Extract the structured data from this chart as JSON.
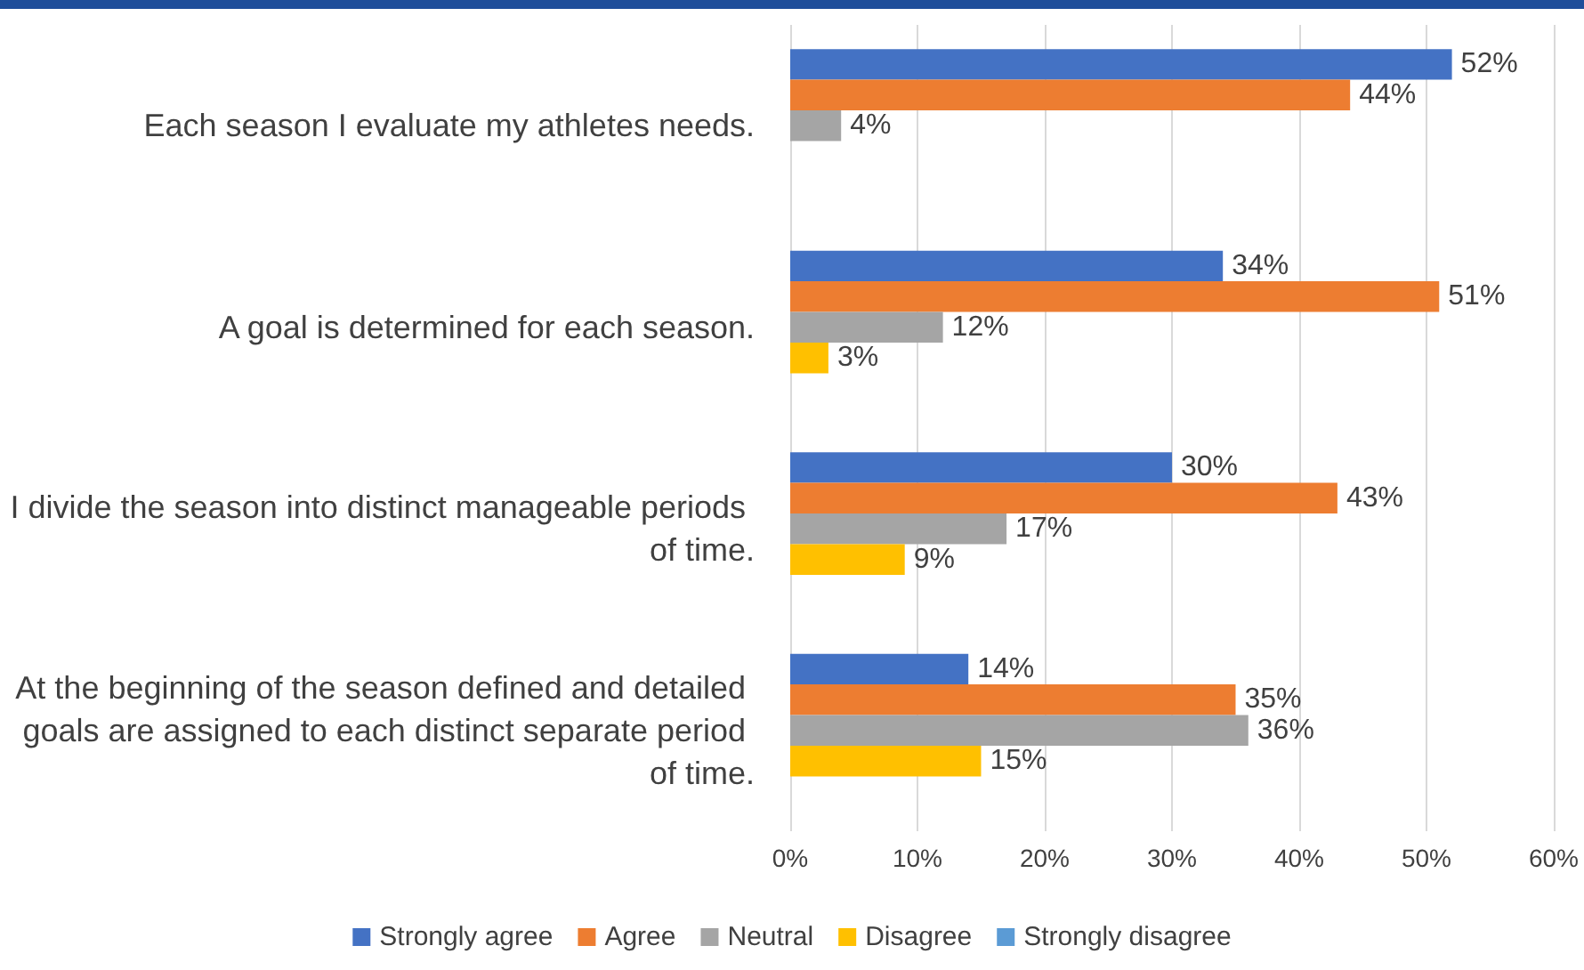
{
  "chart_data": {
    "type": "bar",
    "orientation": "horizontal",
    "categories": [
      "Each season I evaluate my athletes needs.",
      "A goal is determined for each season.",
      "I divide the season into distinct manageable periods of time.",
      "At the beginning of the season defined and detailed goals are assigned to each distinct separate period of time."
    ],
    "series": [
      {
        "name": "Strongly agree",
        "color": "#4472c4",
        "values": [
          52,
          34,
          30,
          14
        ],
        "value_labels": [
          "52%",
          "34%",
          "30%",
          "14%"
        ]
      },
      {
        "name": "Agree",
        "color": "#ed7d31",
        "values": [
          44,
          51,
          43,
          35
        ],
        "value_labels": [
          "44%",
          "51%",
          "43%",
          "35%"
        ]
      },
      {
        "name": "Neutral",
        "color": "#a5a5a5",
        "values": [
          4,
          12,
          17,
          36
        ],
        "value_labels": [
          "4%",
          "12%",
          "17%",
          "36%"
        ]
      },
      {
        "name": "Disagree",
        "color": "#ffc000",
        "values": [
          null,
          3,
          9,
          15
        ],
        "value_labels": [
          null,
          "3%",
          "9%",
          "15%"
        ]
      },
      {
        "name": "Strongly disagree",
        "color": "#5b9bd5",
        "values": [
          null,
          null,
          null,
          null
        ],
        "value_labels": [
          null,
          null,
          null,
          null
        ]
      }
    ],
    "xlim": [
      0,
      60
    ],
    "xticks": [
      {
        "value": 0,
        "label": "0%"
      },
      {
        "value": 10,
        "label": "10%"
      },
      {
        "value": 20,
        "label": "20%"
      },
      {
        "value": 30,
        "label": "30%"
      },
      {
        "value": 40,
        "label": "40%"
      },
      {
        "value": 50,
        "label": "50%"
      },
      {
        "value": 60,
        "label": "60%"
      }
    ],
    "grid": "x",
    "legend": "bottom"
  }
}
